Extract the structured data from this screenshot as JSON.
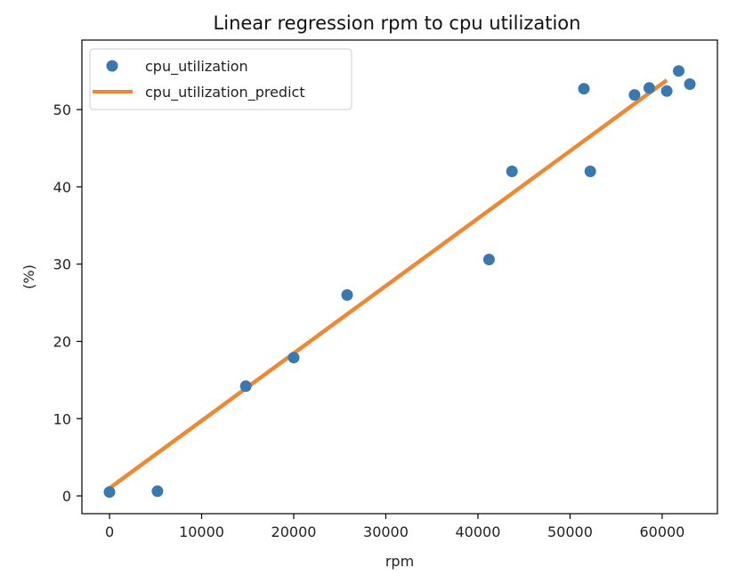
{
  "chart_data": {
    "type": "scatter",
    "title": "Linear regression rpm to cpu utilization",
    "xlabel": "rpm",
    "ylabel": "(%)",
    "xlim": [
      -3000,
      66000
    ],
    "ylim": [
      -2.3,
      59
    ],
    "xticks": [
      0,
      10000,
      20000,
      30000,
      40000,
      50000,
      60000
    ],
    "xtick_labels": [
      "0",
      "10000",
      "20000",
      "30000",
      "40000",
      "50000",
      "60000"
    ],
    "yticks": [
      0,
      10,
      20,
      30,
      40,
      50
    ],
    "ytick_labels": [
      "0",
      "10",
      "20",
      "30",
      "40",
      "50"
    ],
    "grid": false,
    "legend": "top-left",
    "series": [
      {
        "name": "cpu_utilization",
        "kind": "scatter",
        "color": "#3a78b0",
        "points": [
          [
            0,
            0.5
          ],
          [
            5200,
            0.6
          ],
          [
            14800,
            14.2
          ],
          [
            20000,
            17.9
          ],
          [
            25800,
            26.0
          ],
          [
            41200,
            30.6
          ],
          [
            43700,
            42.0
          ],
          [
            51500,
            52.7
          ],
          [
            52200,
            42.0
          ],
          [
            57000,
            51.9
          ],
          [
            58600,
            52.8
          ],
          [
            60500,
            52.4
          ],
          [
            61800,
            55.0
          ],
          [
            63000,
            53.3
          ]
        ]
      },
      {
        "name": "cpu_utilization_predict",
        "kind": "line",
        "color": "#ee8833",
        "points": [
          [
            0,
            1.0
          ],
          [
            60500,
            53.8
          ]
        ]
      }
    ]
  }
}
